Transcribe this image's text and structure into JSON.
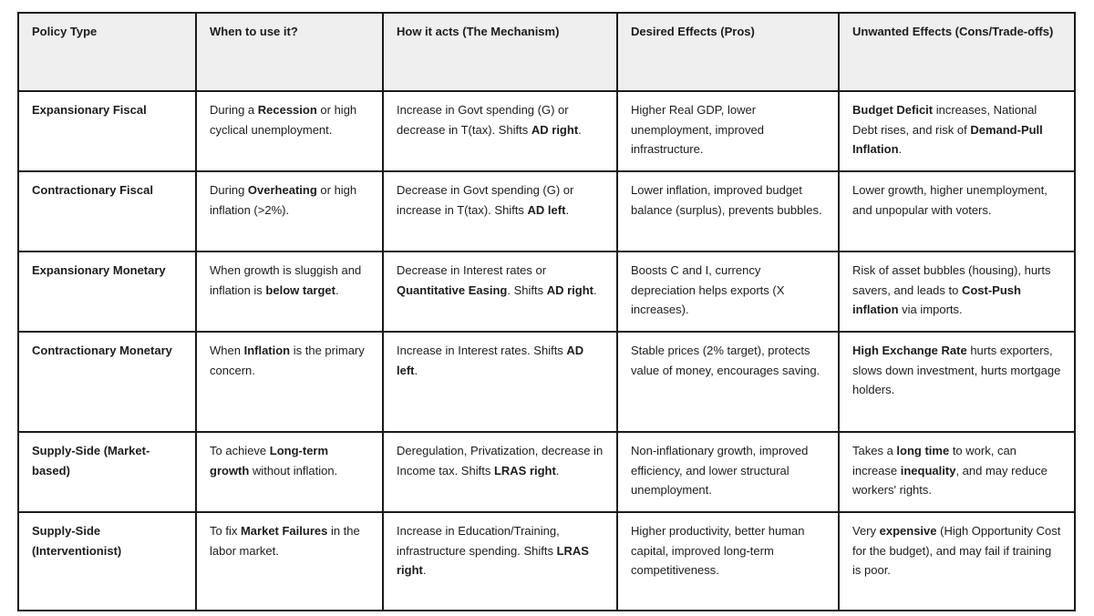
{
  "table": {
    "headers": [
      "Policy Type",
      "When to use it?",
      "How it acts (The Mechanism)",
      "Desired Effects (Pros)",
      "Unwanted Effects (Cons/Trade-offs)"
    ],
    "rows": [
      {
        "policy_type": "Expansionary Fiscal",
        "when": [
          "During a ",
          "Recession",
          " or high cyclical unemployment."
        ],
        "mechanism": [
          "Increase in Govt spending (G) or decrease in T(tax). Shifts ",
          "AD right",
          "."
        ],
        "pros": [
          "Higher Real GDP, lower unemployment, improved infrastructure."
        ],
        "cons": [
          "Budget Deficit",
          " increases, National Debt rises, and risk of ",
          "Demand-Pull Inflation",
          "."
        ]
      },
      {
        "policy_type": "Contractionary Fiscal",
        "when": [
          "During ",
          "Overheating",
          " or high inflation (>2%)."
        ],
        "mechanism": [
          "Decrease in Govt spending (G) or increase in T(tax). Shifts ",
          "AD left",
          "."
        ],
        "pros": [
          "Lower inflation, improved budget balance (surplus), prevents bubbles."
        ],
        "cons": [
          "Lower growth, higher unemployment, and unpopular with voters."
        ]
      },
      {
        "policy_type": "Expansionary Monetary",
        "when": [
          "When growth is sluggish and inflation is ",
          "below target",
          "."
        ],
        "mechanism": [
          "Decrease in Interest rates or ",
          "Quantitative Easing",
          ". Shifts ",
          "AD right",
          "."
        ],
        "pros": [
          "Boosts C and I, currency depreciation helps exports (X increases)."
        ],
        "cons": [
          "Risk of asset bubbles (housing), hurts savers, and leads to ",
          "Cost-Push inflation",
          " via imports."
        ]
      },
      {
        "policy_type": "Contractionary Monetary",
        "when": [
          "When ",
          "Inflation",
          " is the primary concern."
        ],
        "mechanism": [
          "Increase in Interest rates. Shifts ",
          "AD left",
          "."
        ],
        "pros": [
          "Stable prices (2% target), protects value of money, encourages saving."
        ],
        "cons": [
          "High Exchange Rate",
          " hurts exporters, slows down investment, hurts mortgage holders."
        ]
      },
      {
        "policy_type": "Supply-Side (Market-based)",
        "when": [
          "To achieve ",
          "Long-term growth",
          " without inflation."
        ],
        "mechanism": [
          "Deregulation, Privatization, decrease in Income tax. Shifts ",
          "LRAS right",
          "."
        ],
        "pros": [
          "Non-inflationary growth, improved efficiency, and lower structural unemployment."
        ],
        "cons": [
          "Takes a ",
          "long time",
          " to work, can increase ",
          "inequality",
          ", and may reduce workers' rights."
        ]
      },
      {
        "policy_type": "Supply-Side (Interventionist)",
        "when": [
          "To fix ",
          "Market Failures",
          " in the labor market."
        ],
        "mechanism": [
          "Increase in Education/Training, infrastructure spending. Shifts ",
          "LRAS right",
          "."
        ],
        "pros": [
          "Higher productivity, better human capital, improved long-term competitiveness."
        ],
        "cons": [
          "Very ",
          "expensive",
          " (High Opportunity Cost for the budget), and may fail if training is poor."
        ]
      }
    ]
  }
}
